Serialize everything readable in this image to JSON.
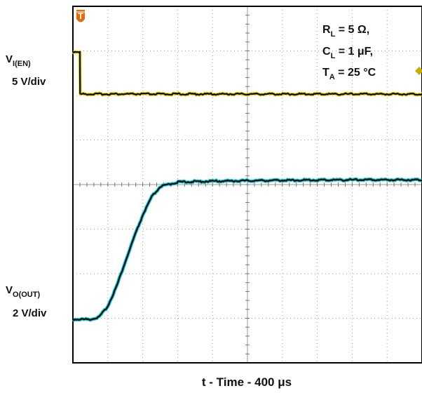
{
  "chart_data": {
    "type": "line",
    "title": "",
    "xlabel": "t - Time - 400 μs",
    "grid": true,
    "divisions": {
      "x": 10,
      "y": 8
    },
    "trigger_marker": "T",
    "trigger_marker_color": "#e36c09",
    "level_marker_color": "#c9b000",
    "conditions": [
      {
        "main": "R",
        "sub": "L",
        "rest": " = 5 Ω,"
      },
      {
        "main": "C",
        "sub": "L",
        "rest": " = 1 μF,"
      },
      {
        "main": "T",
        "sub": "A",
        "rest": " = 25 °C"
      }
    ],
    "series": [
      {
        "label_main": "V",
        "label_sub": "I(EN)",
        "scale": "5 V/div",
        "color": "#f2e400",
        "trace": "#111111",
        "x": [
          0,
          0.2,
          0.205,
          1.2,
          4.0,
          10.0
        ],
        "y": [
          5.4,
          5.4,
          4.45,
          4.45,
          4.45,
          4.45
        ]
      },
      {
        "label_main": "V",
        "label_sub": "O(OUT)",
        "scale": "2 V/div",
        "color": "#00c8d8",
        "trace": "#111111",
        "x": [
          0,
          0.25,
          0.5,
          0.75,
          1.0,
          1.25,
          1.5,
          1.75,
          2.0,
          2.25,
          2.5,
          3.0,
          4.0,
          6.0,
          8.0,
          10.0
        ],
        "y": [
          0.0,
          0.0,
          0.0,
          0.05,
          0.3,
          0.75,
          1.3,
          1.85,
          2.35,
          2.75,
          2.98,
          3.08,
          3.1,
          3.12,
          3.13,
          3.13
        ]
      }
    ]
  }
}
